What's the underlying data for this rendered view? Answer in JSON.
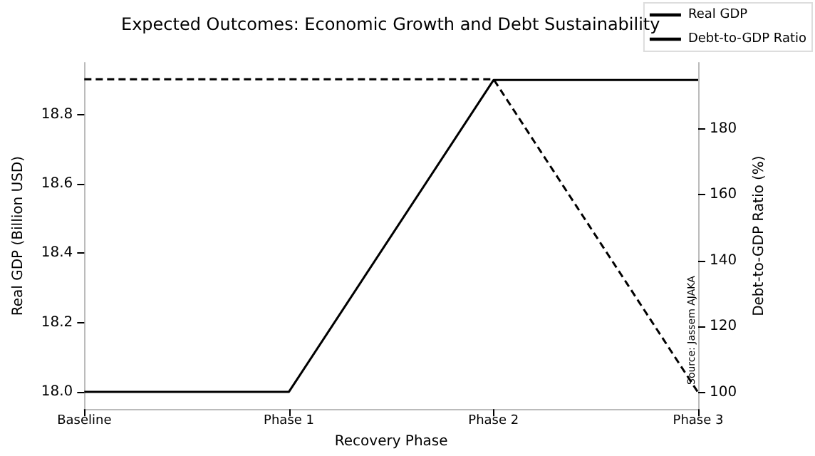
{
  "chart_data": {
    "type": "line",
    "title": "Expected Outcomes: Economic Growth and Debt Sustainability",
    "xlabel": "Recovery Phase",
    "ylabel": "Real GDP (Billion USD)",
    "y2label": "Debt-to-GDP Ratio (%)",
    "categories": [
      "Baseline",
      "Phase 1",
      "Phase 2",
      "Phase 3"
    ],
    "series": [
      {
        "name": "Real GDP",
        "color": "#000000",
        "values": [
          18.0,
          18.0,
          18.9,
          18.9
        ],
        "line_style": "solid"
      },
      {
        "name": "Debt-to-GDP Ratio",
        "color": "#000000",
        "values": [
          195,
          195,
          195,
          100
        ],
        "axis": "y2",
        "line_style": "dashed"
      }
    ],
    "ylim": [
      17.95,
      18.95
    ],
    "yticks": [
      {
        "value": 18,
        "label": "18.0"
      },
      18.2,
      18.4,
      18.6,
      18.8
    ],
    "y2lim": [
      95,
      200
    ],
    "y2ticks": [
      100,
      120,
      140,
      160,
      180
    ],
    "annotations": [
      "Source: Jassem AJAKA"
    ],
    "grid": false,
    "legend": "top right",
    "marker": "none"
  }
}
